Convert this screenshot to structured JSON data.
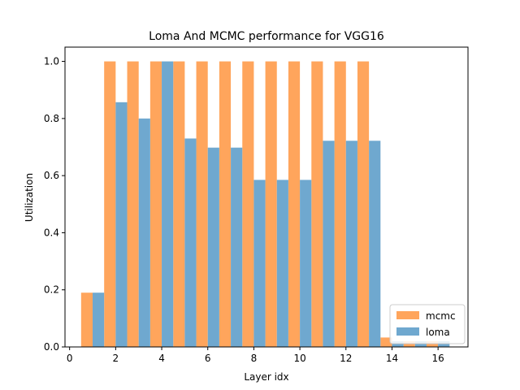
{
  "chart_data": {
    "type": "bar",
    "title": "Loma And MCMC performance for VGG16",
    "xlabel": "Layer idx",
    "ylabel": "Utilization",
    "xlim": [
      -0.2,
      17.3
    ],
    "ylim": [
      0,
      1.05
    ],
    "xticks": [
      0,
      2,
      4,
      6,
      8,
      10,
      12,
      14,
      16
    ],
    "yticks": [
      0.0,
      0.2,
      0.4,
      0.6,
      0.8,
      1.0
    ],
    "bar_width": 0.5,
    "legend_position": "lower-right",
    "x": [
      1,
      2,
      3,
      4,
      5,
      6,
      7,
      8,
      9,
      10,
      11,
      12,
      13,
      14,
      15,
      16
    ],
    "series": [
      {
        "name": "mcmc",
        "color": "#ffa55c",
        "offset": -0.5,
        "values": [
          0.19,
          1.0,
          1.0,
          1.0,
          1.0,
          1.0,
          1.0,
          1.0,
          1.0,
          1.0,
          1.0,
          1.0,
          1.0,
          0.033,
          0.02,
          0.02
        ]
      },
      {
        "name": "loma",
        "color": "#6fa8cf",
        "offset": 0.0,
        "values": [
          0.19,
          0.857,
          0.8,
          1.0,
          0.73,
          0.698,
          0.698,
          0.585,
          0.585,
          0.585,
          0.722,
          0.722,
          0.722,
          0.02,
          0.02,
          0.02
        ]
      }
    ]
  }
}
